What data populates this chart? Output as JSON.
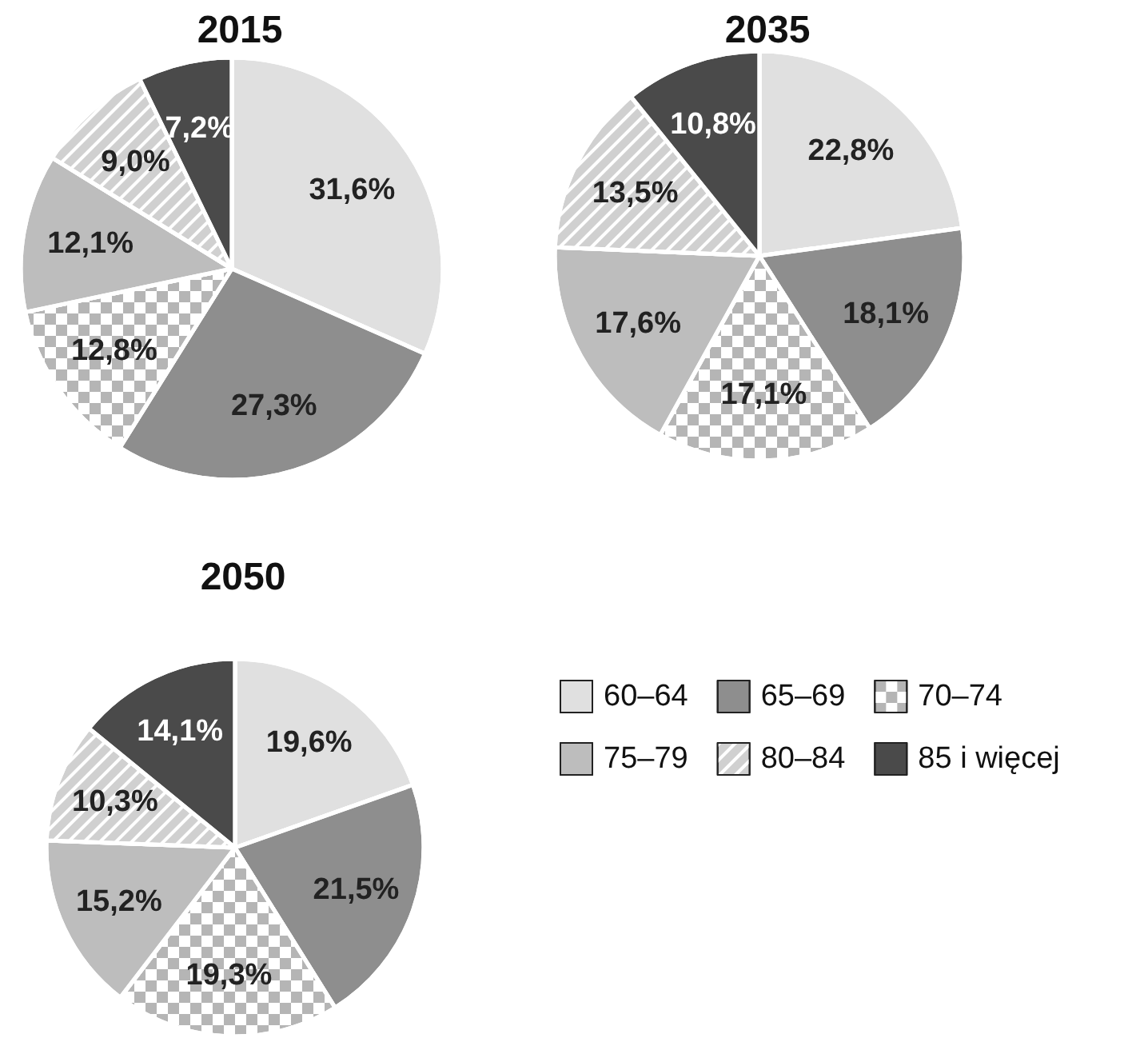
{
  "chart_data": [
    {
      "type": "pie",
      "title": "2015",
      "categories": [
        null,
        null,
        null,
        null,
        null,
        null
      ],
      "values": [
        31.6,
        27.3,
        12.8,
        12.1,
        9.0,
        7.2
      ],
      "colors": [
        "#e0e0e0",
        "#8e8e8e",
        "#b5b5b5",
        "#bdbdbd",
        "#d0d0d0",
        "#4a4a4a"
      ],
      "value_labels": [
        "31,6%",
        "27,3%",
        "12,8%",
        "12,1%",
        "9,0%",
        "7,2%"
      ]
    },
    {
      "type": "pie",
      "title": "2035",
      "categories": [
        null,
        null,
        null,
        null,
        null,
        null
      ],
      "values": [
        22.8,
        18.1,
        17.1,
        17.6,
        13.5,
        10.8
      ],
      "colors": [
        "#e0e0e0",
        "#8e8e8e",
        "#b5b5b5",
        "#bdbdbd",
        "#d0d0d0",
        "#4a4a4a"
      ],
      "value_labels": [
        "22,8%",
        "18,1%",
        "17,1%",
        "17,6%",
        "13,5%",
        "10,8%"
      ]
    },
    {
      "type": "pie",
      "title": "2050",
      "categories": [
        "60–64",
        "65–69",
        "70–74",
        "75–79",
        "80–84",
        "85 i więcej"
      ],
      "values": [
        19.6,
        21.5,
        19.3,
        15.2,
        10.3,
        14.1
      ],
      "colors": [
        "#e0e0e0",
        "#8e8e8e",
        "#b5b5b5",
        "#bdbdbd",
        "#d0d0d0",
        "#4a4a4a"
      ],
      "value_labels": [
        "19,6%",
        "21,5%",
        "19,3%",
        "15,2%",
        "10,3%",
        "14,1%"
      ],
      "legend": "right"
    }
  ]
}
